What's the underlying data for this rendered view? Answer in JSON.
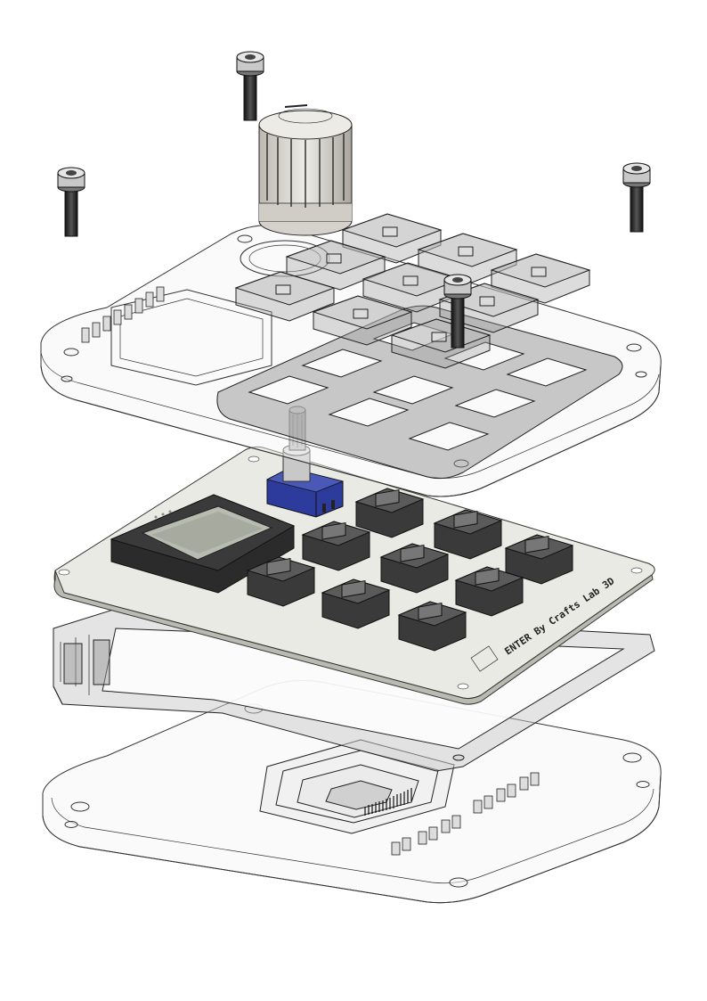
{
  "diagram": {
    "type": "exploded-assembly",
    "pcb_label": "ENTER By Crafts Lab 3D",
    "colors": {
      "outline": "#2b2b2b",
      "transparent_fill": "#f1f1f1",
      "smoke_fill": "#7a7a7a",
      "pcb": "#e9eae4",
      "switch": "#3a3a3a",
      "oled_glass": "#b8bbb0",
      "encoder_blue": "#2d3b9c",
      "knob": "#d4d2cb",
      "screw": "#222222"
    }
  }
}
